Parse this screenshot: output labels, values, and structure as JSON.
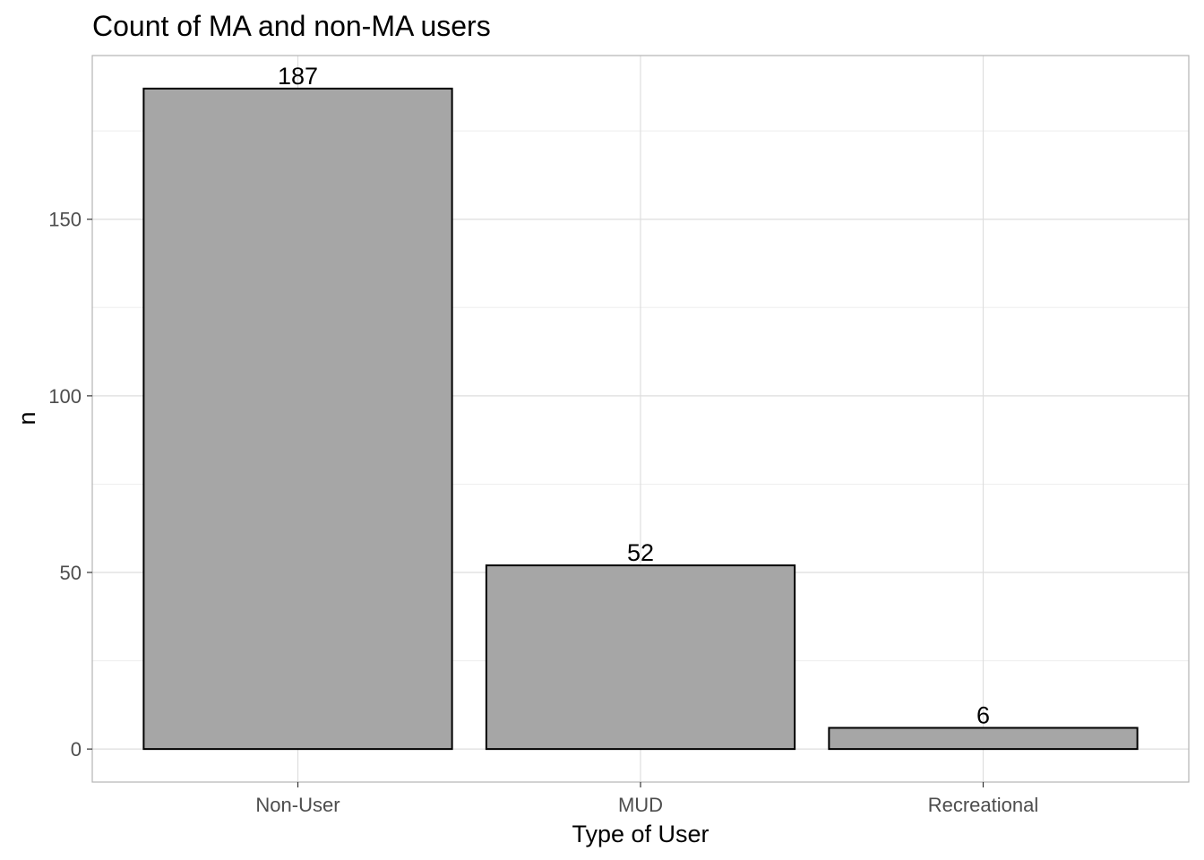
{
  "chart_data": {
    "type": "bar",
    "title": "Count of MA and non-MA users",
    "xlabel": "Type of User",
    "ylabel": "n",
    "categories": [
      "Non-User",
      "MUD",
      "Recreational"
    ],
    "values": [
      187,
      52,
      6
    ],
    "data_labels": [
      "187",
      "52",
      "6"
    ],
    "ylim": [
      -9.35,
      196.35
    ],
    "yticks": [
      0,
      50,
      100,
      150
    ],
    "ytick_labels": [
      "0",
      "50",
      "100",
      "150"
    ],
    "grid": true,
    "legend": "none",
    "colors": {
      "bar_fill": "#a6a6a6",
      "bar_stroke": "#000000",
      "grid_major": "#dedede",
      "grid_minor": "#eeeeee",
      "panel_border": "#b3b3b3",
      "tick_text": "#4d4d4d"
    }
  }
}
